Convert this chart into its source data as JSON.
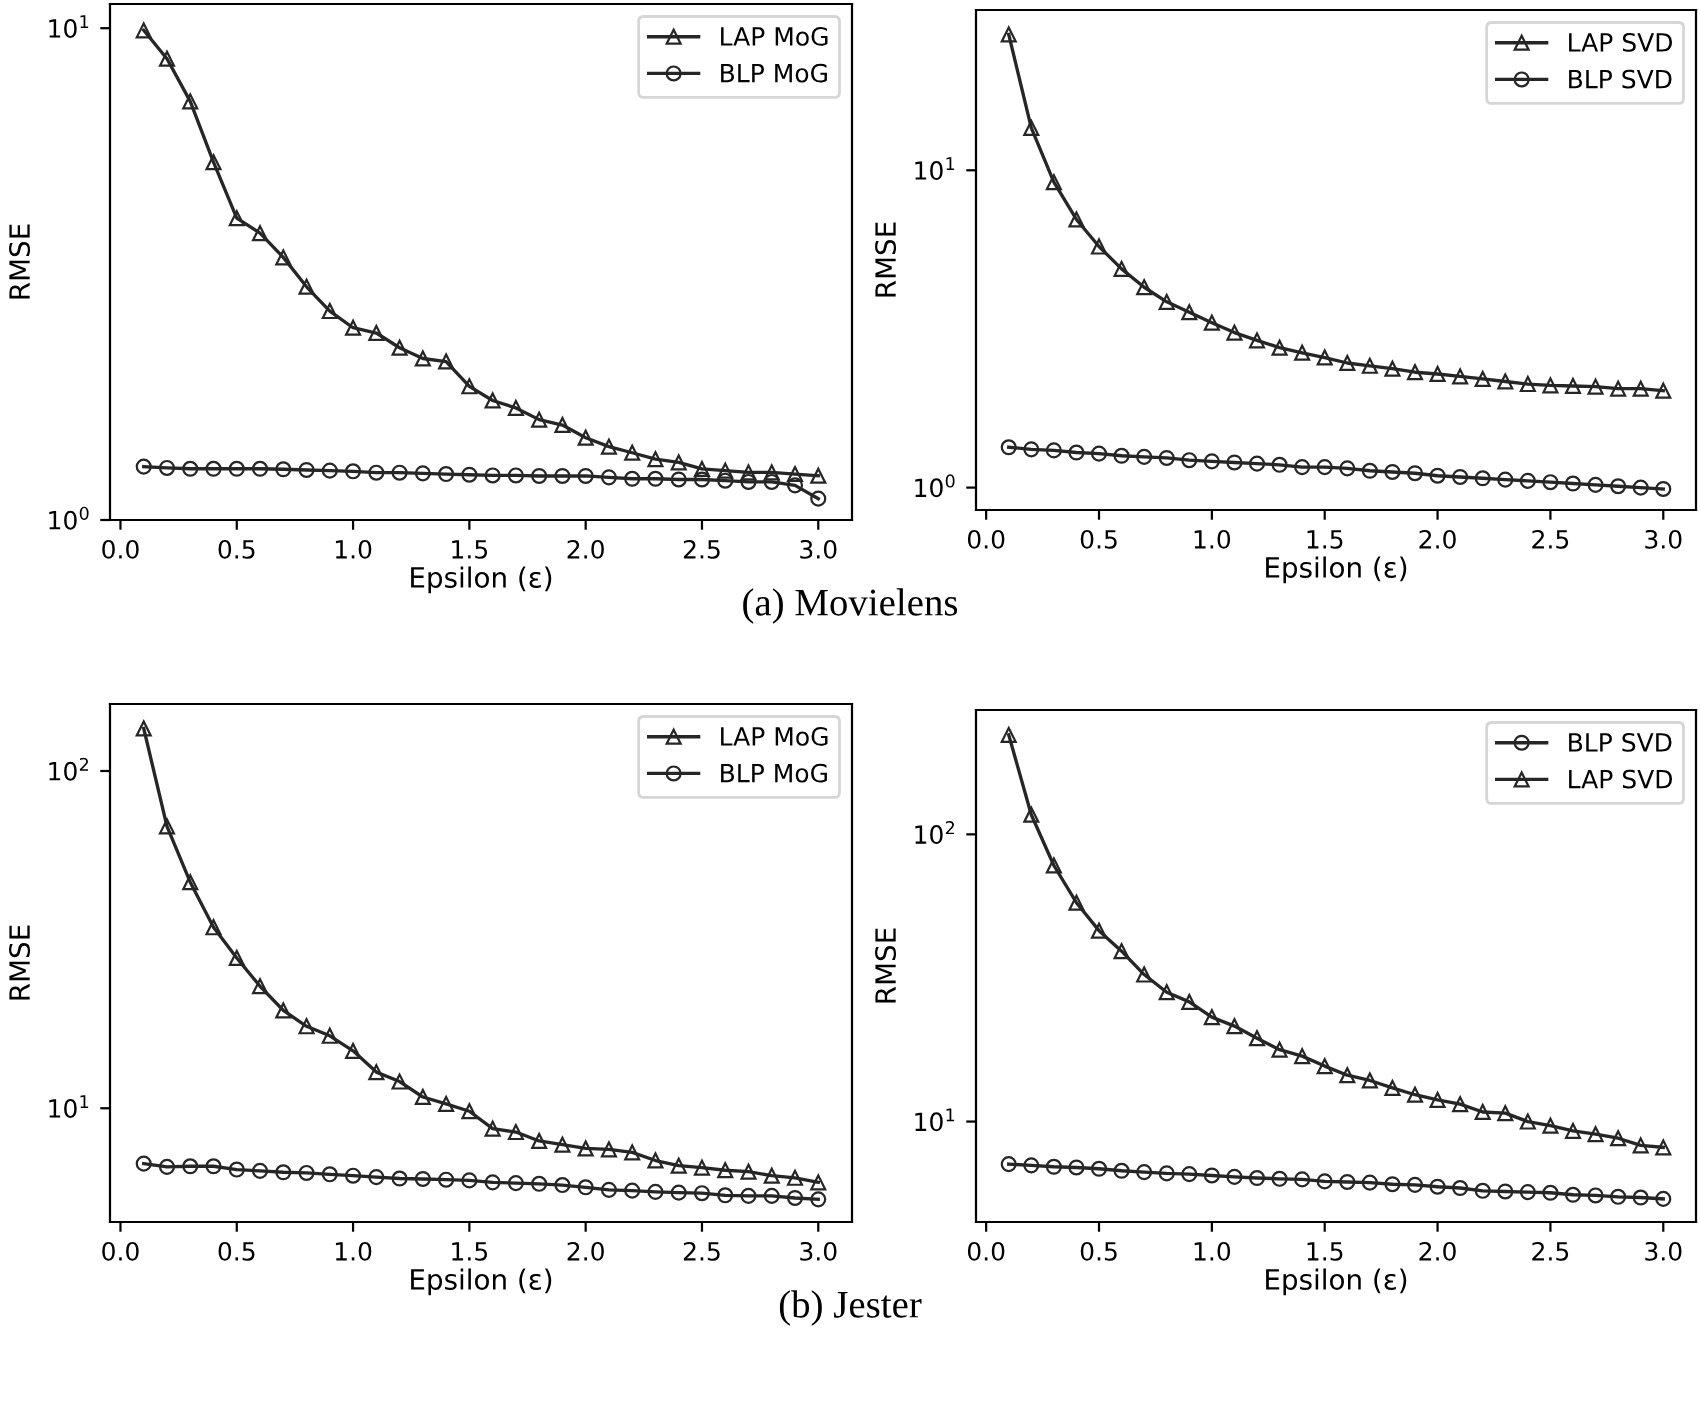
{
  "chart_data": [
    {
      "type": "line",
      "ylabel": "RMSE",
      "xlabel": "Epsilon (ε)",
      "log": "y",
      "legend": "top right",
      "grid": false,
      "x": [
        0.1,
        0.2,
        0.3,
        0.4,
        0.5,
        0.6,
        0.7,
        0.8,
        0.9,
        1.0,
        1.1,
        1.2,
        1.3,
        1.4,
        1.5,
        1.6,
        1.7,
        1.8,
        1.9,
        2.0,
        2.1,
        2.2,
        2.3,
        2.4,
        2.5,
        2.6,
        2.7,
        2.8,
        2.9,
        3.0
      ],
      "xlim": [
        -0.045,
        3.145
      ],
      "xticks": [
        {
          "value": 0,
          "label": "0.0"
        },
        0.5,
        {
          "value": 1,
          "label": "1.0"
        },
        1.5,
        {
          "value": 2,
          "label": "2.0"
        },
        2.5,
        {
          "value": 3,
          "label": "3.0"
        }
      ],
      "ylim": [
        1,
        11.2
      ],
      "yticks": [
        {
          "value": 1,
          "label": "10$^{0}$"
        },
        {
          "value": 10,
          "label": "10$^{1}$"
        }
      ],
      "series": [
        {
          "name": "LAP MoG",
          "color": "#262626",
          "marker": "triangle",
          "values": [
            9.9,
            8.67,
            7.1,
            5.34,
            4.11,
            3.83,
            3.42,
            2.98,
            2.66,
            2.46,
            2.4,
            2.24,
            2.13,
            2.1,
            1.87,
            1.75,
            1.69,
            1.6,
            1.56,
            1.47,
            1.41,
            1.37,
            1.33,
            1.31,
            1.27,
            1.26,
            1.25,
            1.25,
            1.24,
            1.23
          ]
        },
        {
          "name": "BLP MoG",
          "color": "#262626",
          "marker": "circle",
          "values": [
            1.284,
            1.276,
            1.271,
            1.271,
            1.271,
            1.271,
            1.268,
            1.264,
            1.26,
            1.256,
            1.248,
            1.248,
            1.244,
            1.24,
            1.236,
            1.232,
            1.232,
            1.229,
            1.229,
            1.229,
            1.221,
            1.213,
            1.213,
            1.209,
            1.209,
            1.202,
            1.195,
            1.195,
            1.176,
            1.105
          ]
        }
      ],
      "annotations": [
        "(a) Movielens"
      ]
    },
    {
      "type": "line",
      "ylabel": "RMSE",
      "xlabel": "Epsilon (ε)",
      "log": "y",
      "legend": "top right",
      "grid": false,
      "x": [
        0.1,
        0.2,
        0.3,
        0.4,
        0.5,
        0.6,
        0.7,
        0.8,
        0.9,
        1.0,
        1.1,
        1.2,
        1.3,
        1.4,
        1.5,
        1.6,
        1.7,
        1.8,
        1.9,
        2.0,
        2.1,
        2.2,
        2.3,
        2.4,
        2.5,
        2.6,
        2.7,
        2.8,
        2.9,
        3.0
      ],
      "xlim": [
        -0.045,
        3.145
      ],
      "xticks": [
        {
          "value": 0,
          "label": "0.0"
        },
        0.5,
        {
          "value": 1,
          "label": "1.0"
        },
        1.5,
        {
          "value": 2,
          "label": "2.0"
        },
        2.5,
        {
          "value": 3,
          "label": "3.0"
        }
      ],
      "ylim": [
        0.85,
        32
      ],
      "yticks": [
        {
          "value": 1,
          "label": "10$^{0}$"
        },
        {
          "value": 10,
          "label": "10$^{1}$"
        }
      ],
      "series": [
        {
          "name": "LAP SVD",
          "color": "#262626",
          "marker": "triangle",
          "values": [
            26.8,
            13.6,
            9.18,
            7.0,
            5.75,
            4.89,
            4.28,
            3.85,
            3.57,
            3.31,
            3.08,
            2.91,
            2.76,
            2.66,
            2.57,
            2.47,
            2.42,
            2.37,
            2.31,
            2.28,
            2.24,
            2.2,
            2.16,
            2.12,
            2.1,
            2.09,
            2.08,
            2.05,
            2.05,
            2.02
          ]
        },
        {
          "name": "BLP SVD",
          "color": "#262626",
          "marker": "circle",
          "values": [
            1.34,
            1.32,
            1.31,
            1.29,
            1.28,
            1.26,
            1.25,
            1.24,
            1.22,
            1.21,
            1.2,
            1.19,
            1.18,
            1.16,
            1.16,
            1.15,
            1.13,
            1.12,
            1.11,
            1.09,
            1.08,
            1.07,
            1.06,
            1.05,
            1.04,
            1.03,
            1.02,
            1.01,
            1.0,
            0.99
          ]
        }
      ]
    },
    {
      "type": "line",
      "ylabel": "RMSE",
      "xlabel": "Epsilon (ε)",
      "log": "y",
      "legend": "top right",
      "grid": false,
      "x": [
        0.1,
        0.2,
        0.3,
        0.4,
        0.5,
        0.6,
        0.7,
        0.8,
        0.9,
        1.0,
        1.1,
        1.2,
        1.3,
        1.4,
        1.5,
        1.6,
        1.7,
        1.8,
        1.9,
        2.0,
        2.1,
        2.2,
        2.3,
        2.4,
        2.5,
        2.6,
        2.7,
        2.8,
        2.9,
        3.0
      ],
      "xlim": [
        -0.045,
        3.145
      ],
      "xticks": [
        {
          "value": 0,
          "label": "0.0"
        },
        0.5,
        {
          "value": 1,
          "label": "1.0"
        },
        1.5,
        {
          "value": 2,
          "label": "2.0"
        },
        2.5,
        {
          "value": 3,
          "label": "3.0"
        }
      ],
      "ylim": [
        4.6,
        158
      ],
      "yticks": [
        {
          "value": 10,
          "label": "10$^{1}$"
        },
        {
          "value": 100,
          "label": "10$^{2}$"
        }
      ],
      "series": [
        {
          "name": "LAP MoG",
          "color": "#262626",
          "marker": "triangle",
          "values": [
            133.7,
            68.5,
            46.8,
            34.4,
            27.9,
            23.0,
            19.5,
            17.5,
            16.4,
            14.8,
            12.8,
            12.0,
            10.8,
            10.3,
            9.8,
            8.7,
            8.5,
            8.0,
            7.8,
            7.6,
            7.55,
            7.4,
            7.0,
            6.76,
            6.67,
            6.55,
            6.49,
            6.31,
            6.22,
            6.03
          ]
        },
        {
          "name": "BLP MoG",
          "color": "#262626",
          "marker": "circle",
          "values": [
            6.85,
            6.7,
            6.73,
            6.73,
            6.58,
            6.52,
            6.46,
            6.43,
            6.37,
            6.31,
            6.25,
            6.19,
            6.17,
            6.14,
            6.11,
            6.03,
            6.0,
            5.97,
            5.92,
            5.83,
            5.73,
            5.7,
            5.65,
            5.62,
            5.6,
            5.52,
            5.5,
            5.5,
            5.42,
            5.37
          ]
        }
      ],
      "annotations": [
        "(b) Jester"
      ]
    },
    {
      "type": "line",
      "ylabel": "RMSE",
      "xlabel": "Epsilon (ε)",
      "log": "y",
      "legend": "top right",
      "grid": false,
      "x": [
        0.1,
        0.2,
        0.3,
        0.4,
        0.5,
        0.6,
        0.7,
        0.8,
        0.9,
        1.0,
        1.1,
        1.2,
        1.3,
        1.4,
        1.5,
        1.6,
        1.7,
        1.8,
        1.9,
        2.0,
        2.1,
        2.2,
        2.3,
        2.4,
        2.5,
        2.6,
        2.7,
        2.8,
        2.9,
        3.0
      ],
      "xlim": [
        -0.045,
        3.145
      ],
      "xticks": [
        {
          "value": 0,
          "label": "0.0"
        },
        0.5,
        {
          "value": 1,
          "label": "1.0"
        },
        1.5,
        {
          "value": 2,
          "label": "2.0"
        },
        2.5,
        {
          "value": 3,
          "label": "3.0"
        }
      ],
      "ylim": [
        4.47,
        271
      ],
      "yticks": [
        {
          "value": 10,
          "label": "10$^{1}$"
        },
        {
          "value": 100,
          "label": "10$^{2}$"
        }
      ],
      "series": [
        {
          "name": "BLP SVD",
          "color": "#262626",
          "marker": "circle",
          "values": [
            7.11,
            7.04,
            6.96,
            6.92,
            6.85,
            6.74,
            6.67,
            6.6,
            6.56,
            6.49,
            6.42,
            6.36,
            6.32,
            6.29,
            6.19,
            6.16,
            6.13,
            6.05,
            6.02,
            5.93,
            5.87,
            5.74,
            5.71,
            5.68,
            5.65,
            5.56,
            5.53,
            5.47,
            5.44,
            5.38
          ]
        },
        {
          "name": "LAP SVD",
          "color": "#262626",
          "marker": "triangle",
          "values": [
            222,
            117,
            77.9,
            57.8,
            46.2,
            39.2,
            32.5,
            28.2,
            26.1,
            23.1,
            21.5,
            19.5,
            17.8,
            16.9,
            15.6,
            14.5,
            13.9,
            13.1,
            12.4,
            11.9,
            11.5,
            10.8,
            10.7,
            10.0,
            9.68,
            9.28,
            9.04,
            8.75,
            8.26,
            8.13
          ]
        }
      ]
    }
  ]
}
